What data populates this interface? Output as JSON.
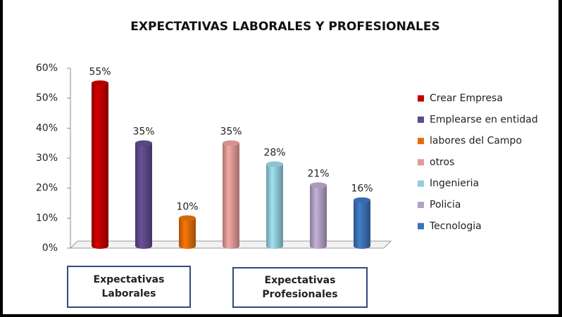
{
  "chart_data": {
    "type": "bar3d",
    "title": "EXPECTATIVAS   LABORALES Y PROFESIONALES",
    "series": [
      {
        "name": "Crear Empresa",
        "color": "#c00000",
        "values": [
          55
        ],
        "value_labels": [
          "55%"
        ]
      },
      {
        "name": "Emplearse en entidad",
        "color": "#5f4a8a",
        "values": [
          35
        ],
        "value_labels": [
          "35%"
        ]
      },
      {
        "name": "labores del Campo",
        "color": "#e36c09",
        "values": [
          10
        ],
        "value_labels": [
          "10%"
        ]
      },
      {
        "name": "otros",
        "color": "#e09a98",
        "values": [
          35
        ],
        "value_labels": [
          "35%"
        ]
      },
      {
        "name": "Ingenieria",
        "color": "#93cddd",
        "values": [
          28
        ],
        "value_labels": [
          "28%"
        ]
      },
      {
        "name": "Policia",
        "color": "#b3a2c7",
        "values": [
          21
        ],
        "value_labels": [
          "21%"
        ]
      },
      {
        "name": "Tecnologia",
        "color": "#3c72b8",
        "values": [
          16
        ],
        "value_labels": [
          "16%"
        ]
      }
    ],
    "ylim": [
      0,
      60
    ],
    "yticks": [
      {
        "value": 0,
        "label": "0%"
      },
      {
        "value": 10,
        "label": "10%"
      },
      {
        "value": 20,
        "label": "20%"
      },
      {
        "value": 30,
        "label": "30%"
      },
      {
        "value": 40,
        "label": "40%"
      },
      {
        "value": 50,
        "label": "50%"
      },
      {
        "value": 60,
        "label": "60%"
      }
    ],
    "legend": "right",
    "annotations": [
      "Expectativas Laborales",
      "Expectativas Profesionales"
    ]
  }
}
